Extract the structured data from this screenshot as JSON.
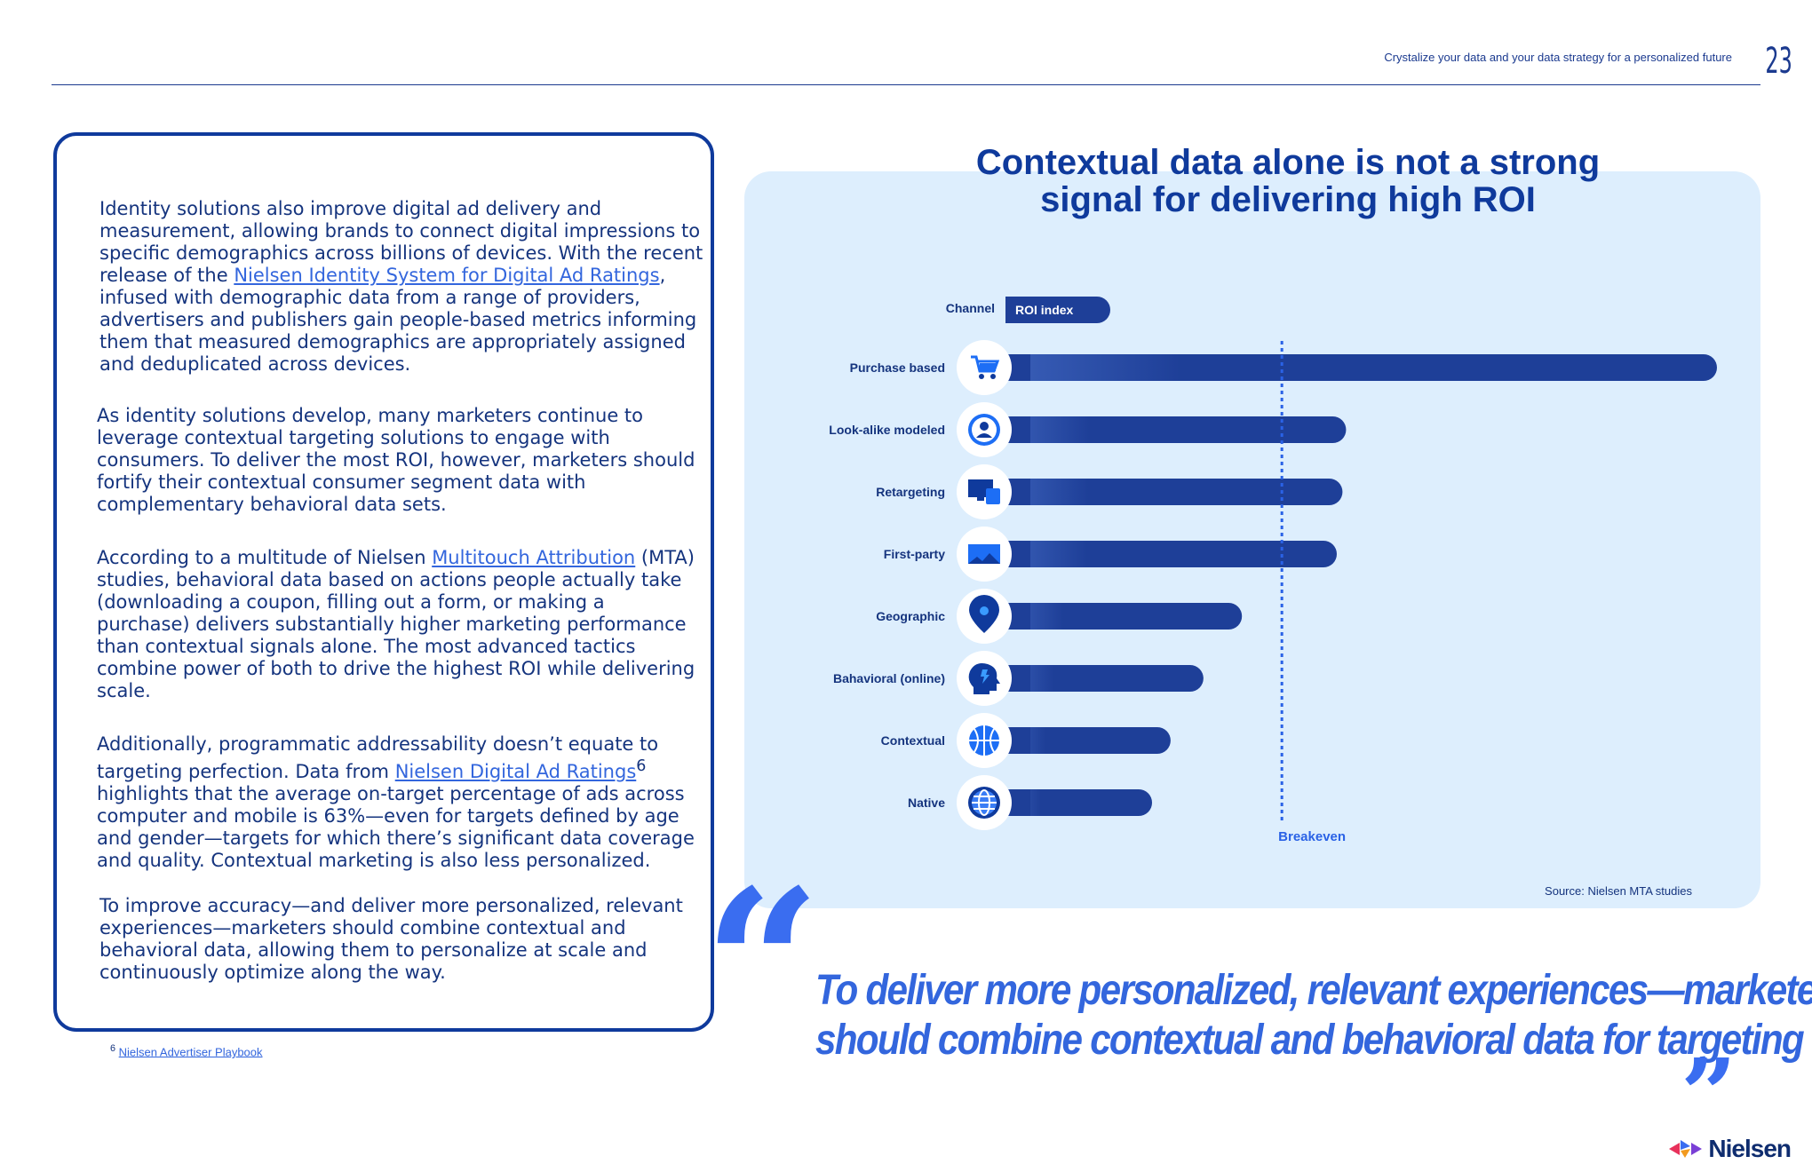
{
  "header": {
    "subtitle": "Crystalize your data and your data strategy for a personalized future",
    "page_number": "23"
  },
  "left_card": {
    "p1": [
      "Identity solutions also improve digital ad delivery and",
      "measurement, allowing brands to connect digital impressions",
      "to specific demographics across billions of devices. With",
      "the recent release of the "
    ],
    "p1_link": "Nielsen Identity System for Digital Ad Ratings",
    "p1_after": ", infused with demographic data from a range of providers, advertisers and publishers gain people-based metrics informing them that measured demographics are appropriately assigned and deduplicated across devices.",
    "p2": "As identity solutions develop, many marketers continue to leverage contextual targeting solutions to engage with consumers. To deliver the most ROI, however, marketers should fortify their contextual consumer segment data with complementary behavioral data sets.",
    "p3_before": "According to a multitude of Nielsen ",
    "p3_link": "Multitouch Attribution",
    "p3_after": " (MTA) studies, behavioral data based on actions people actually take (downloading a coupon, filling out a form, or making a purchase) delivers substantially higher marketing performance than contextual signals alone. The most advanced tactics combine power of both to drive the highest ROI while delivering scale.",
    "p4_before": "Additionally, programmatic addressability doesn’t equate to targeting perfection. Data from ",
    "p4_link": "Nielsen Digital Ad Ratings",
    "p4_sup": "6",
    "p4_after": " highlights that the average on-target percentage of ads across computer and mobile is 63%—even for targets defined by age and gender—targets for which there’s significant data coverage and quality. Contextual marketing is also less personalized.",
    "p5": "To improve accuracy—and deliver more personalized, relevant experiences—marketers should combine contextual and behavioral data, allowing them to personalize at scale and continuously optimize along the way."
  },
  "footnote": {
    "mark": "6",
    "link": "Nielsen Advertiser Playbook"
  },
  "chart_title": [
    "Contextual data alone is not a strong",
    "signal for delivering high ROI"
  ],
  "chart_data": {
    "type": "bar",
    "orientation": "horizontal",
    "header_label": "Channel",
    "legend_label": "ROI index",
    "categories": [
      "Purchase based",
      "Look-alike modeled",
      "Retargeting",
      "First-party",
      "Geographic",
      "Bahavioral (online)",
      "Contextual",
      "Native"
    ],
    "icons": [
      "cart-icon",
      "person-icon",
      "devices-icon",
      "envelope-icon",
      "map-pin-icon",
      "head-icon",
      "ball-icon",
      "globe-icon"
    ],
    "values": [
      100,
      48,
      47.5,
      46.7,
      33.4,
      28,
      23.4,
      20.8
    ],
    "breakeven": 39,
    "breakeven_label": "Breakeven",
    "xlim": [
      0,
      100
    ],
    "bar_color": "#1e3f98",
    "breakeven_color": "#2a62e6",
    "source": "Source: Nielsen MTA studies"
  },
  "quote": {
    "open": "“",
    "close": "”",
    "lines": [
      "To deliver more personalized, relevant experiences—marketers",
      "should combine contextual and behavioral data for targeting"
    ]
  },
  "logo": {
    "text": "Nielsen"
  }
}
